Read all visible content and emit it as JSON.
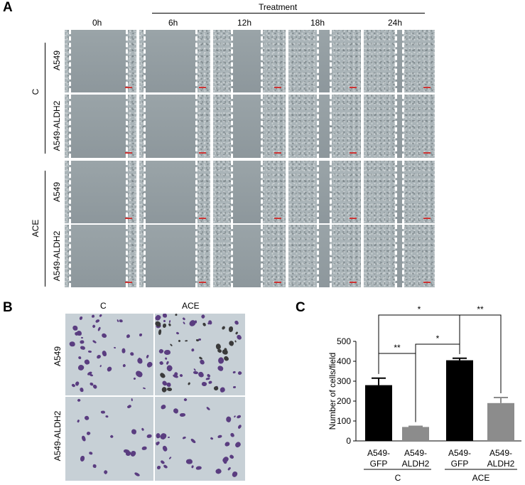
{
  "panelA": {
    "letter": "A",
    "treatment": "Treatment",
    "times": [
      "0h",
      "6h",
      "12h",
      "18h",
      "24h"
    ],
    "groups": [
      "C",
      "ACE"
    ],
    "rows": [
      "A549",
      "A549-ALDH2",
      "A549",
      "A549-ALDH2"
    ]
  },
  "panelB": {
    "letter": "B",
    "cols": [
      "C",
      "ACE"
    ],
    "rows": [
      "A549",
      "A549-ALDH2"
    ]
  },
  "panelC": {
    "letter": "C",
    "ylabel": "Number of cells/field",
    "yticks": [
      "500",
      "400",
      "300",
      "200",
      "100",
      "0"
    ],
    "bars": [
      {
        "line1": "A549-",
        "line2": "GFP",
        "value": 280,
        "error": 35,
        "color": "#000000"
      },
      {
        "line1": "A549-",
        "line2": "ALDH2",
        "value": 70,
        "error": 3,
        "color": "#8c8c8c"
      },
      {
        "line1": "A549-",
        "line2": "GFP",
        "value": 405,
        "error": 10,
        "color": "#000000"
      },
      {
        "line1": "A549-",
        "line2": "ALDH2",
        "value": 190,
        "error": 28,
        "color": "#8c8c8c"
      }
    ],
    "groups": [
      "C",
      "ACE"
    ],
    "significance": [
      "*",
      "**",
      "**",
      "*"
    ]
  },
  "chart_data": {
    "type": "bar",
    "categories": [
      "A549-GFP (C)",
      "A549-ALDH2 (C)",
      "A549-GFP (ACE)",
      "A549-ALDH2 (ACE)"
    ],
    "values": [
      280,
      70,
      405,
      190
    ],
    "errors": [
      35,
      3,
      10,
      28
    ],
    "ylabel": "Number of cells/field",
    "ylim": [
      0,
      500
    ],
    "yticks": [
      0,
      100,
      200,
      300,
      400,
      500
    ],
    "groups": [
      "C",
      "ACE"
    ],
    "annotations": [
      "*",
      "**",
      "**",
      "*"
    ],
    "colors": [
      "#000000",
      "#8c8c8c",
      "#000000",
      "#8c8c8c"
    ]
  }
}
